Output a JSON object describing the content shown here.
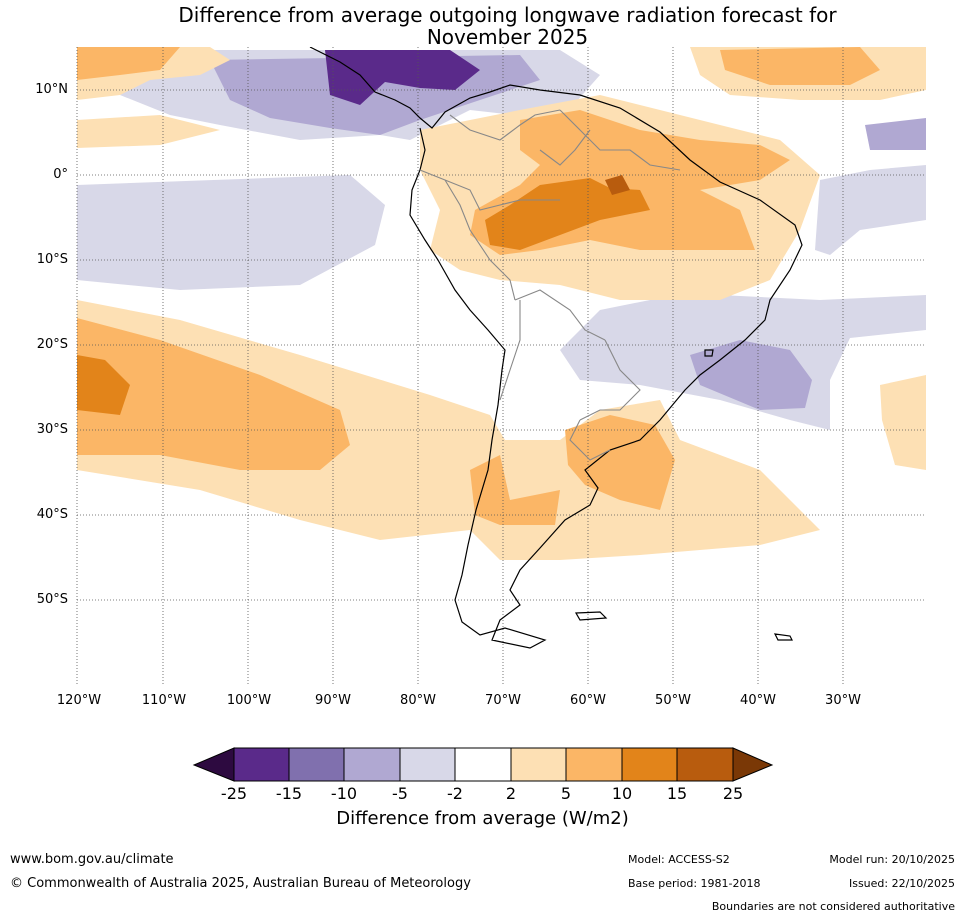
{
  "title": {
    "line1": "Difference from average outgoing longwave radiation forecast for",
    "line2": "November 2025"
  },
  "axes": {
    "lat_labels": [
      "10°N",
      "0°",
      "10°S",
      "20°S",
      "30°S",
      "40°S",
      "50°S"
    ],
    "lon_labels": [
      "120°W",
      "110°W",
      "100°W",
      "90°W",
      "80°W",
      "70°W",
      "60°W",
      "50°W",
      "40°W",
      "30°W"
    ]
  },
  "colorbar": {
    "ticks": [
      "-25",
      "-15",
      "-10",
      "-5",
      "-2",
      "2",
      "5",
      "10",
      "15",
      "25"
    ],
    "title": "Difference from average (W/m2)",
    "colors": {
      "lt_m25": "#2d0a40",
      "m25_m15": "#5a2a8a",
      "m15_m10": "#8070ae",
      "m10_m5": "#b0a8d2",
      "m5_m2": "#d8d8e8",
      "m2_2": "#ffffff",
      "p2_p5": "#fde0b4",
      "p5_p10": "#fbb666",
      "p10_p15": "#e2841a",
      "p15_p25": "#b85c0e",
      "gt_p25": "#7a3806"
    }
  },
  "footer": {
    "url": "www.bom.gov.au/climate",
    "copyright": "© Commonwealth of Australia 2025, Australian Bureau of Meteorology",
    "model": "Model: ACCESS-S2",
    "base_period": "Base period: 1981-2018",
    "model_run": "Model run: 20/10/2025",
    "issued": "Issued: 22/10/2025",
    "disclaimer": "Boundaries are not considered authoritative"
  }
}
